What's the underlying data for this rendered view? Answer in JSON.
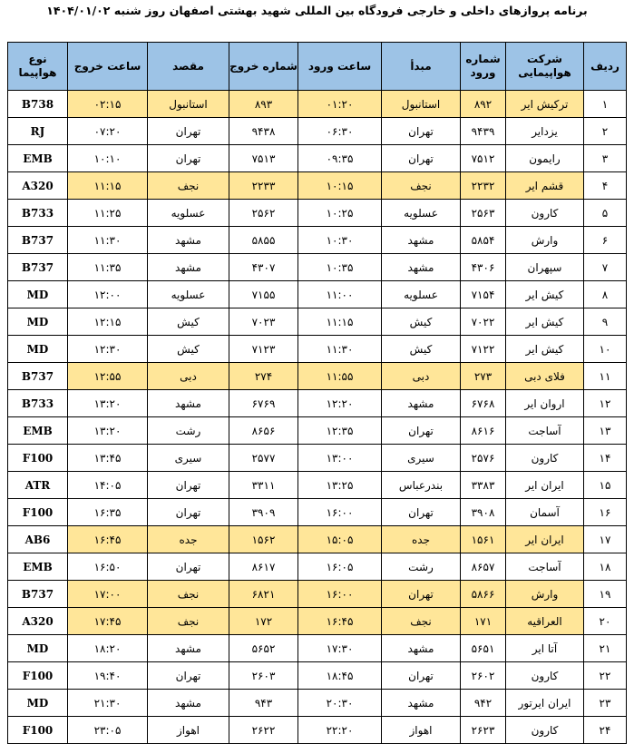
{
  "title": "برنامه پروازهای داخلی و خارجی فرودگاه بین المللی شهید بهشتی اصفهان روز شنبه ۱۴۰۴/۰۱/۰۲",
  "table": {
    "headers": [
      "ردیف",
      "شرکت هواپیمایی",
      "شماره ورود",
      "مبدأ",
      "ساعت ورود",
      "شماره خروج",
      "مقصد",
      "ساعت خروج",
      "نوع هواپیما"
    ],
    "highlighted_rows": [
      0,
      3,
      10,
      16,
      18,
      19
    ],
    "highlight_color": "#ffe699",
    "rows": [
      [
        "۱",
        "ترکیش ایر",
        "۸۹۲",
        "استانبول",
        "۰۱:۲۰",
        "۸۹۳",
        "استانبول",
        "۰۲:۱۵",
        "B738"
      ],
      [
        "۲",
        "یزدایر",
        "۹۴۳۹",
        "تهران",
        "۰۶:۳۰",
        "۹۴۳۸",
        "تهران",
        "۰۷:۲۰",
        "RJ"
      ],
      [
        "۳",
        "رایمون",
        "۷۵۱۲",
        "تهران",
        "۰۹:۳۵",
        "۷۵۱۳",
        "تهران",
        "۱۰:۱۰",
        "EMB"
      ],
      [
        "۴",
        "قشم ایر",
        "۲۲۳۲",
        "نجف",
        "۱۰:۱۵",
        "۲۲۳۳",
        "نجف",
        "۱۱:۱۵",
        "A320"
      ],
      [
        "۵",
        "کارون",
        "۲۵۶۳",
        "عسلویه",
        "۱۰:۲۵",
        "۲۵۶۲",
        "عسلویه",
        "۱۱:۲۵",
        "B733"
      ],
      [
        "۶",
        "وارش",
        "۵۸۵۴",
        "مشهد",
        "۱۰:۳۰",
        "۵۸۵۵",
        "مشهد",
        "۱۱:۳۰",
        "B737"
      ],
      [
        "۷",
        "سپهران",
        "۴۳۰۶",
        "مشهد",
        "۱۰:۳۵",
        "۴۳۰۷",
        "مشهد",
        "۱۱:۳۵",
        "B737"
      ],
      [
        "۸",
        "کیش ایر",
        "۷۱۵۴",
        "عسلویه",
        "۱۱:۰۰",
        "۷۱۵۵",
        "عسلویه",
        "۱۲:۰۰",
        "MD"
      ],
      [
        "۹",
        "کیش ایر",
        "۷۰۲۲",
        "کیش",
        "۱۱:۱۵",
        "۷۰۲۳",
        "کیش",
        "۱۲:۱۵",
        "MD"
      ],
      [
        "۱۰",
        "کیش ایر",
        "۷۱۲۲",
        "کیش",
        "۱۱:۳۰",
        "۷۱۲۳",
        "کیش",
        "۱۲:۳۰",
        "MD"
      ],
      [
        "۱۱",
        "فلای دبی",
        "۲۷۳",
        "دبی",
        "۱۱:۵۵",
        "۲۷۴",
        "دبی",
        "۱۲:۵۵",
        "B737"
      ],
      [
        "۱۲",
        "اروان ایر",
        "۶۷۶۸",
        "مشهد",
        "۱۲:۲۰",
        "۶۷۶۹",
        "مشهد",
        "۱۳:۲۰",
        "B733"
      ],
      [
        "۱۳",
        "آساجت",
        "۸۶۱۶",
        "تهران",
        "۱۲:۳۵",
        "۸۶۵۶",
        "رشت",
        "۱۳:۲۰",
        "EMB"
      ],
      [
        "۱۴",
        "کارون",
        "۲۵۷۶",
        "سیری",
        "۱۳:۰۰",
        "۲۵۷۷",
        "سیری",
        "۱۳:۴۵",
        "F100"
      ],
      [
        "۱۵",
        "ایران ایر",
        "۳۳۸۳",
        "بندرعباس",
        "۱۳:۲۵",
        "۳۳۱۱",
        "تهران",
        "۱۴:۰۵",
        "ATR"
      ],
      [
        "۱۶",
        "آسمان",
        "۳۹۰۸",
        "تهران",
        "۱۶:۰۰",
        "۳۹۰۹",
        "تهران",
        "۱۶:۳۵",
        "F100"
      ],
      [
        "۱۷",
        "ایران ایر",
        "۱۵۶۱",
        "جده",
        "۱۵:۰۵",
        "۱۵۶۲",
        "جده",
        "۱۶:۴۵",
        "AB6"
      ],
      [
        "۱۸",
        "آساجت",
        "۸۶۵۷",
        "رشت",
        "۱۶:۰۵",
        "۸۶۱۷",
        "تهران",
        "۱۶:۵۰",
        "EMB"
      ],
      [
        "۱۹",
        "وارش",
        "۵۸۶۶",
        "تهران",
        "۱۶:۰۰",
        "۶۸۲۱",
        "نجف",
        "۱۷:۰۰",
        "B737"
      ],
      [
        "۲۰",
        "العراقیه",
        "۱۷۱",
        "نجف",
        "۱۶:۴۵",
        "۱۷۲",
        "نجف",
        "۱۷:۴۵",
        "A320"
      ],
      [
        "۲۱",
        "آتا ایر",
        "۵۶۵۱",
        "مشهد",
        "۱۷:۳۰",
        "۵۶۵۲",
        "مشهد",
        "۱۸:۲۰",
        "MD"
      ],
      [
        "۲۲",
        "کارون",
        "۲۶۰۲",
        "تهران",
        "۱۸:۴۵",
        "۲۶۰۳",
        "تهران",
        "۱۹:۴۰",
        "F100"
      ],
      [
        "۲۳",
        "ایران ایرتور",
        "۹۴۲",
        "مشهد",
        "۲۰:۳۰",
        "۹۴۳",
        "مشهد",
        "۲۱:۳۰",
        "MD"
      ],
      [
        "۲۴",
        "کارون",
        "۲۶۲۳",
        "اهواز",
        "۲۲:۲۰",
        "۲۶۲۲",
        "اهواز",
        "۲۳:۰۵",
        "F100"
      ]
    ]
  }
}
